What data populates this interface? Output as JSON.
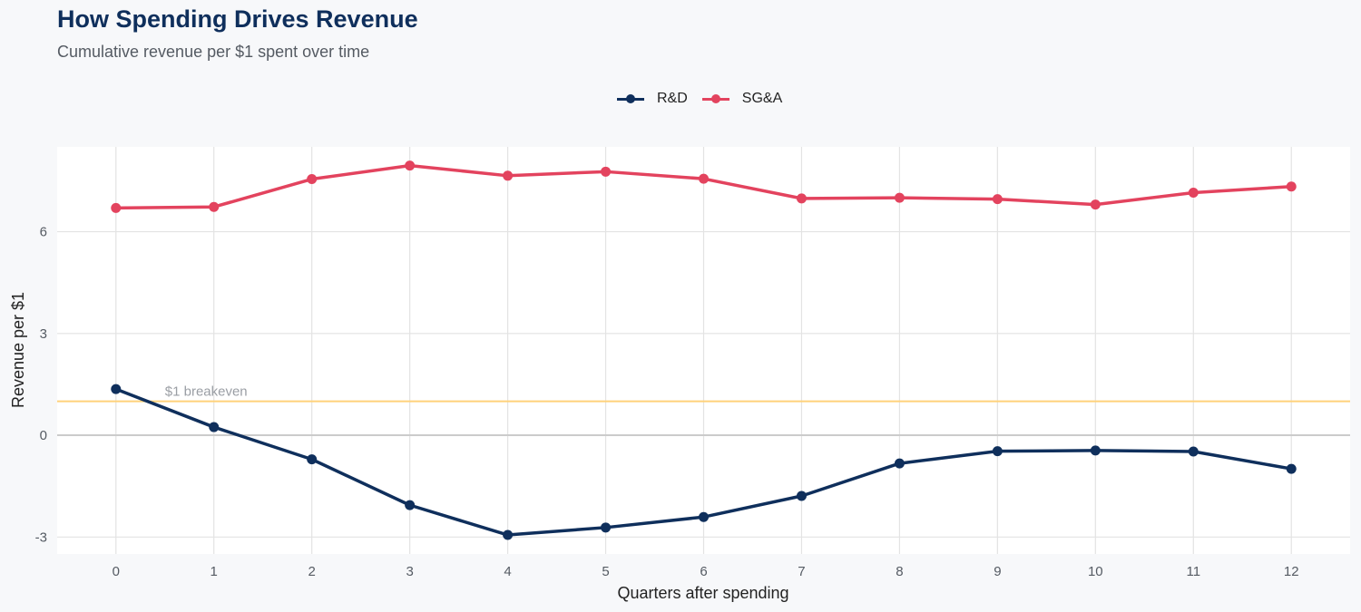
{
  "chart_data": {
    "type": "line",
    "title": "How Spending Drives Revenue",
    "subtitle": "Cumulative revenue per $1 spent over time",
    "xlabel": "Quarters after spending",
    "ylabel": "Revenue per $1",
    "x": [
      0,
      1,
      2,
      3,
      4,
      5,
      6,
      7,
      8,
      9,
      10,
      11,
      12
    ],
    "x_ticks": [
      "0",
      "1",
      "2",
      "3",
      "4",
      "5",
      "6",
      "7",
      "8",
      "9",
      "10",
      "11",
      "12"
    ],
    "y_ticks": [
      "-3",
      "0",
      "3",
      "6"
    ],
    "xlim": [
      -0.6,
      12.6
    ],
    "ylim": [
      -3.5,
      8.5
    ],
    "grid": true,
    "legend_position": "top",
    "series": [
      {
        "name": "R&D",
        "color": "#0f2f5c",
        "values": [
          1.36,
          0.24,
          -0.71,
          -2.06,
          -2.94,
          -2.72,
          -2.41,
          -1.79,
          -0.83,
          -0.47,
          -0.45,
          -0.48,
          -0.99
        ]
      },
      {
        "name": "SG&A",
        "color": "#e3435e",
        "values": [
          6.7,
          6.73,
          7.55,
          7.95,
          7.65,
          7.77,
          7.56,
          6.98,
          7.0,
          6.96,
          6.8,
          7.15,
          7.33
        ]
      }
    ],
    "reference_line": {
      "y": 1,
      "label": "$1 breakeven",
      "color": "#ffd27a"
    }
  }
}
